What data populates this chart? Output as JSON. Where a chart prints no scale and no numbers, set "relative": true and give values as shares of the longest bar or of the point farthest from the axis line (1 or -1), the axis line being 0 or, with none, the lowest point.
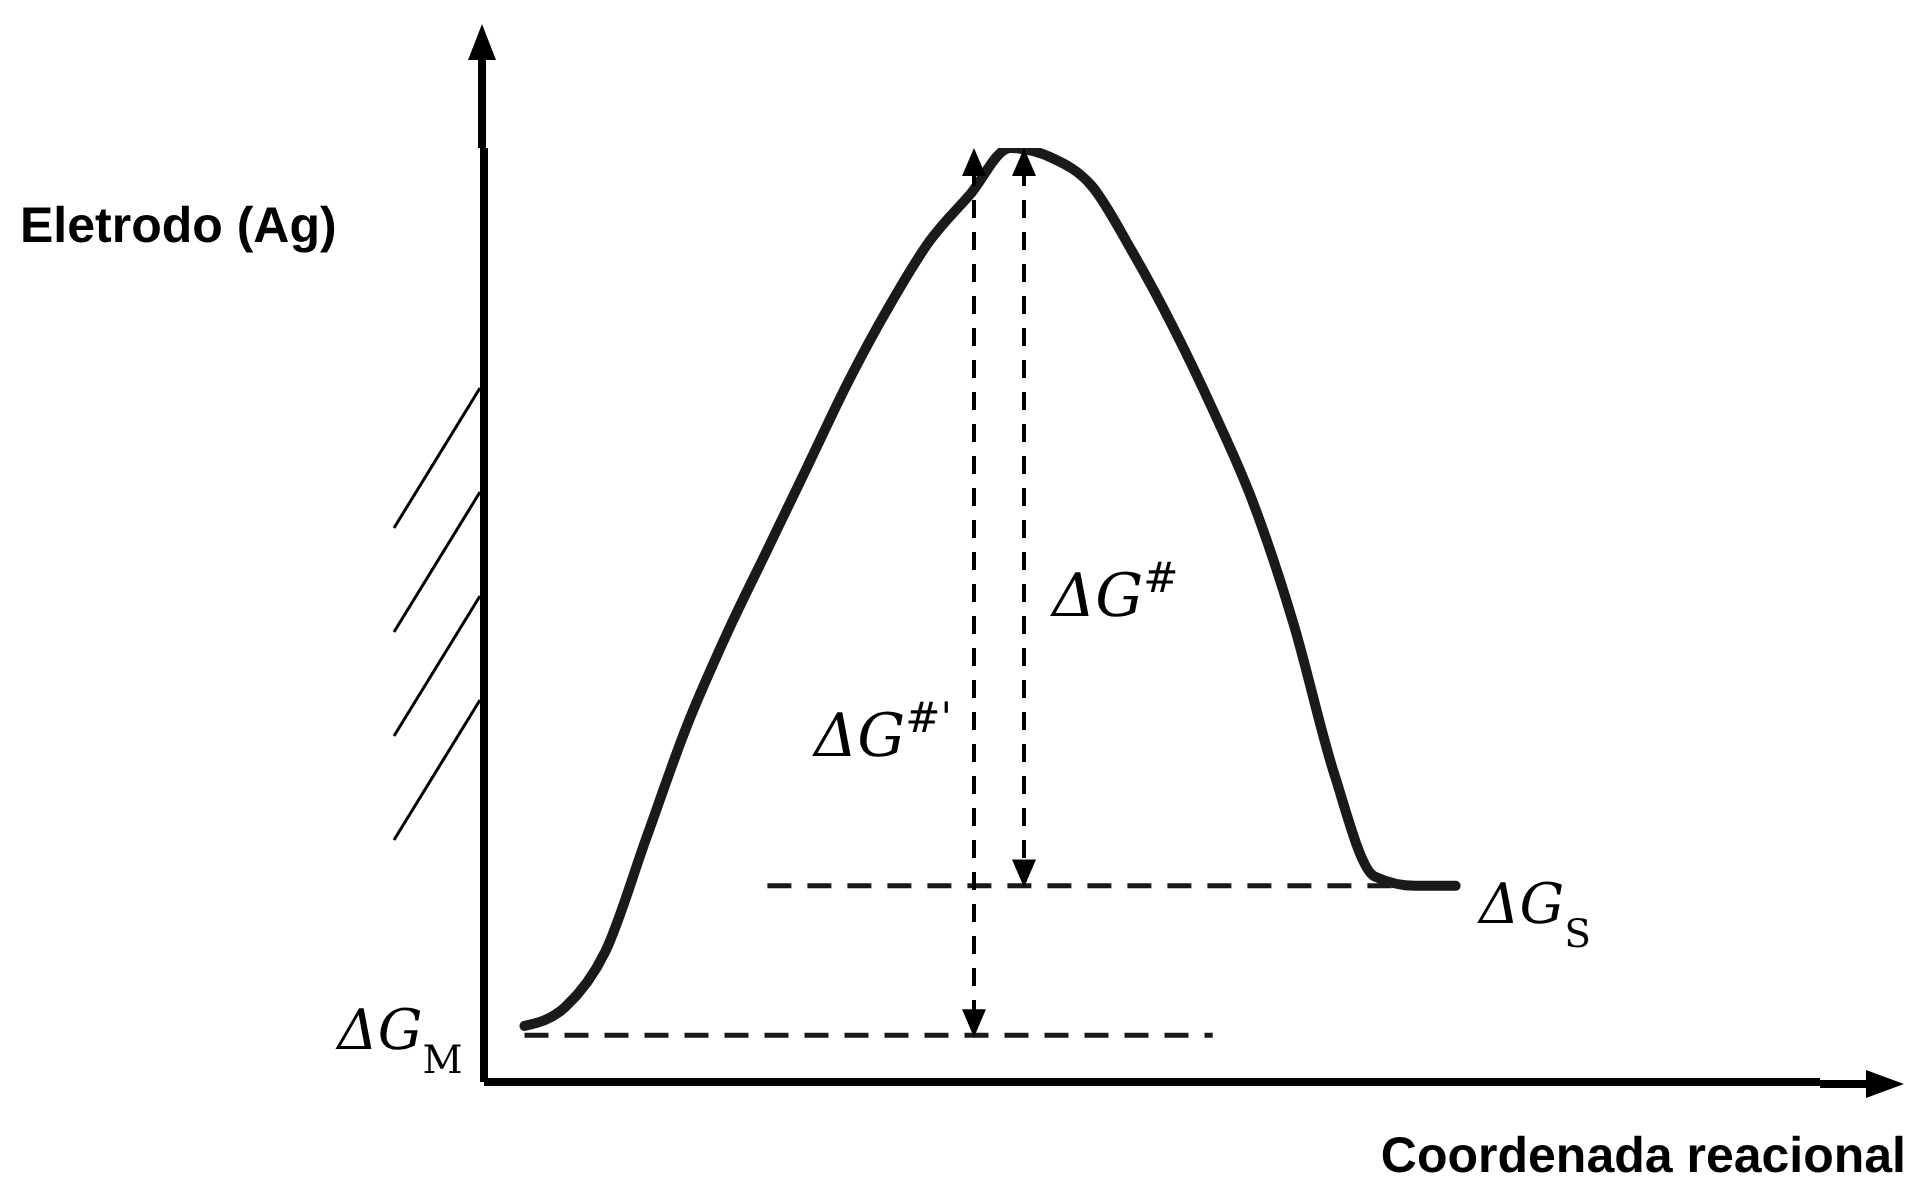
{
  "chart_data": {
    "type": "line",
    "relative": true,
    "xlabel": "Coordenada reacional",
    "ylabel": "Eletrodo (Ag)",
    "categories": [
      null,
      null,
      null,
      null,
      null,
      null,
      null,
      null,
      null,
      null,
      null,
      null,
      null,
      null,
      null,
      null,
      null,
      null,
      null,
      null,
      null,
      null,
      null,
      null,
      null,
      null,
      null,
      null,
      null,
      null,
      null,
      null,
      null,
      null
    ],
    "series": [
      {
        "color": "#1a1a1a",
        "values": [
          null,
          0.06,
          0.08,
          0.14,
          0.26,
          0.38,
          0.48,
          0.57,
          0.66,
          0.75,
          0.83,
          0.9,
          0.95,
          1.0,
          0.99,
          0.96,
          0.89,
          0.81,
          0.72,
          0.62,
          0.49,
          0.33,
          0.22,
          0.21,
          0.21,
          null,
          null,
          null,
          null,
          null,
          null,
          null,
          null,
          null
        ]
      }
    ],
    "marker": "none",
    "line_style": "solid",
    "ref_lines": [
      {
        "axis": "y",
        "value": 0.05,
        "label": "ΔG$_{M}$",
        "color": "#1a1a1a",
        "line_style": "dashed"
      },
      {
        "axis": "y",
        "value": 0.21,
        "label": "ΔG$_{S}$",
        "color": "#1a1a1a",
        "line_style": "dashed"
      }
    ],
    "annotations": [
      "ΔG$^{#'}$",
      "ΔG$^{#}$"
    ]
  }
}
